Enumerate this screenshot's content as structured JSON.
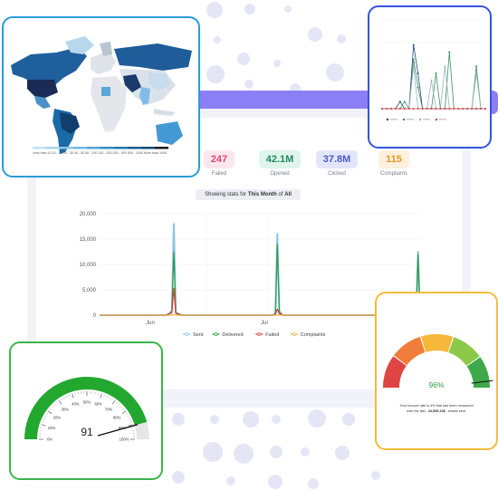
{
  "stats": [
    {
      "value": "247",
      "label": "Failed",
      "fg": "#e0457b",
      "bg": "#fde7ef"
    },
    {
      "value": "42.1M",
      "label": "Opened",
      "fg": "#1e8a5e",
      "bg": "#dff5ec"
    },
    {
      "value": "37.8M",
      "label": "Clicked",
      "fg": "#4b5cc4",
      "bg": "#e3e6fb"
    },
    {
      "value": "115",
      "label": "Complaints",
      "fg": "#e29a2b",
      "bg": "#fdf0dc"
    }
  ],
  "showing": {
    "prefix": "Showing stats for",
    "period": "This Month",
    "of": "of",
    "scope": "All"
  },
  "chart_data": {
    "type": "line",
    "title": "",
    "y_ticks": [
      "20,000",
      "15,000",
      "10,000",
      "5,000",
      "0"
    ],
    "ylim": [
      0,
      20000
    ],
    "x_ticks": [
      "Jun",
      "Jul"
    ],
    "legend": [
      "Sent",
      "Delivered",
      "Failed",
      "Complaints"
    ],
    "grid": true,
    "series": [
      {
        "name": "Sent",
        "color": "#8cc5e6",
        "values": [
          0,
          0,
          0,
          0,
          0,
          0,
          0,
          0,
          0,
          0,
          0,
          0,
          0,
          0,
          0,
          0,
          0,
          0,
          0,
          0,
          0,
          0,
          0,
          0,
          0,
          0,
          0,
          0,
          0,
          0,
          0,
          0,
          0,
          0,
          0,
          200,
          400,
          900,
          18000,
          600,
          300,
          200,
          0,
          0,
          0,
          0,
          0,
          0,
          0,
          0,
          0,
          0,
          0,
          0,
          0,
          0,
          0,
          0,
          0,
          0,
          0,
          0,
          0,
          0,
          0,
          0,
          0,
          0,
          0,
          0,
          0,
          0,
          0,
          0,
          0,
          0,
          0,
          0,
          0,
          0,
          0,
          0,
          0,
          0,
          0,
          0,
          0,
          0,
          0,
          0,
          500,
          16000,
          800,
          300,
          0,
          0,
          0,
          0,
          0,
          0,
          0,
          0,
          0,
          0,
          0,
          0,
          0,
          0,
          0,
          0,
          0,
          0,
          0,
          0,
          0,
          0,
          0,
          0,
          0,
          0,
          0,
          0,
          0,
          0,
          0,
          0,
          0,
          0,
          0,
          0,
          0,
          0,
          0,
          0,
          0,
          0,
          0,
          0,
          0,
          0,
          0,
          0,
          0,
          0,
          0,
          0,
          0,
          0,
          0,
          0,
          0,
          0,
          0,
          0,
          0,
          0,
          0,
          0,
          0,
          0,
          0,
          0,
          0,
          12500,
          500,
          0
        ]
      },
      {
        "name": "Delivered",
        "color": "#2e9b47",
        "values": [
          0,
          0,
          0,
          0,
          0,
          0,
          0,
          0,
          0,
          0,
          0,
          0,
          0,
          0,
          0,
          0,
          0,
          0,
          0,
          0,
          0,
          0,
          0,
          0,
          0,
          0,
          0,
          0,
          0,
          0,
          0,
          0,
          0,
          0,
          0,
          200,
          400,
          800,
          12500,
          500,
          300,
          200,
          0,
          0,
          0,
          0,
          0,
          0,
          0,
          0,
          0,
          0,
          0,
          0,
          0,
          0,
          0,
          0,
          0,
          0,
          0,
          0,
          0,
          0,
          0,
          0,
          0,
          0,
          0,
          0,
          0,
          0,
          0,
          0,
          0,
          0,
          0,
          0,
          0,
          0,
          0,
          0,
          0,
          0,
          0,
          0,
          0,
          0,
          0,
          0,
          400,
          14000,
          600,
          200,
          0,
          0,
          0,
          0,
          0,
          0,
          0,
          0,
          0,
          0,
          0,
          0,
          0,
          0,
          0,
          0,
          0,
          0,
          0,
          0,
          0,
          0,
          0,
          0,
          0,
          0,
          0,
          0,
          0,
          0,
          0,
          0,
          0,
          0,
          0,
          0,
          0,
          0,
          0,
          0,
          0,
          0,
          0,
          0,
          0,
          0,
          0,
          0,
          0,
          0,
          0,
          0,
          0,
          0,
          0,
          0,
          0,
          0,
          0,
          0,
          0,
          0,
          0,
          0,
          0,
          0,
          0,
          0,
          0,
          12000,
          400,
          0
        ]
      },
      {
        "name": "Failed",
        "color": "#e03a3a",
        "values": [
          0,
          0,
          0,
          0,
          0,
          0,
          0,
          0,
          0,
          0,
          0,
          0,
          0,
          0,
          0,
          0,
          0,
          0,
          0,
          0,
          0,
          0,
          0,
          0,
          0,
          0,
          0,
          0,
          0,
          0,
          0,
          0,
          0,
          0,
          0,
          100,
          300,
          500,
          5300,
          400,
          200,
          100,
          0,
          0,
          0,
          0,
          0,
          0,
          0,
          0,
          0,
          0,
          0,
          0,
          0,
          0,
          0,
          0,
          0,
          0,
          0,
          0,
          0,
          0,
          0,
          0,
          0,
          0,
          0,
          0,
          0,
          0,
          0,
          0,
          0,
          0,
          0,
          0,
          0,
          0,
          0,
          0,
          0,
          0,
          0,
          0,
          0,
          0,
          0,
          0,
          200,
          1200,
          300,
          100,
          0,
          0,
          0,
          0,
          0,
          0,
          0,
          0,
          0,
          0,
          0,
          0,
          0,
          0,
          0,
          0,
          0,
          0,
          0,
          0,
          0,
          0,
          0,
          0,
          0,
          0,
          0,
          0,
          0,
          0,
          0,
          0,
          0,
          0,
          0,
          0,
          0,
          0,
          0,
          0,
          0,
          0,
          0,
          0,
          0,
          0,
          0,
          0,
          0,
          0,
          0,
          0,
          0,
          0,
          0,
          0,
          0,
          0,
          0,
          0,
          0,
          0,
          0,
          0,
          0,
          0,
          0,
          0,
          0,
          200,
          0,
          0
        ]
      },
      {
        "name": "Complaints",
        "color": "#f0b14a",
        "values": [
          0,
          0,
          0,
          0,
          0,
          0,
          0,
          0,
          0,
          0,
          0,
          0,
          0,
          0,
          0,
          0,
          0,
          0,
          0,
          0,
          0,
          0,
          0,
          0,
          0,
          0,
          0,
          0,
          0,
          0,
          0,
          0,
          0,
          0,
          0,
          0,
          0,
          0,
          100,
          0,
          0,
          0,
          0,
          0,
          0,
          0,
          0,
          0,
          0,
          0,
          0,
          0,
          0,
          0,
          0,
          0,
          0,
          0,
          0,
          0,
          0,
          0,
          0,
          0,
          0,
          0,
          0,
          0,
          0,
          0,
          0,
          0,
          0,
          0,
          0,
          0,
          0,
          0,
          0,
          0,
          0,
          0,
          0,
          0,
          0,
          0,
          0,
          0,
          0,
          0,
          0,
          100,
          0,
          0,
          0,
          0,
          0,
          0,
          0,
          0,
          0,
          0,
          0,
          0,
          0,
          0,
          0,
          0,
          0,
          0,
          0,
          0,
          0,
          0,
          0,
          0,
          0,
          0,
          0,
          0,
          0,
          0,
          0,
          0,
          0,
          0,
          0,
          0,
          0,
          0,
          0,
          0,
          0,
          0,
          0,
          0,
          0,
          0,
          0,
          0,
          0,
          0,
          0,
          0,
          0,
          0,
          0,
          0,
          0,
          0,
          0,
          0,
          0,
          0,
          0,
          0,
          0,
          0,
          0,
          0,
          0,
          0,
          0,
          0,
          0,
          0
        ]
      }
    ]
  },
  "map": {
    "legend_text": "Less than 10 10 - 20 20 - 30 30 - 50 50 - 100 100 - 200 200 - 500 500 - 1000 More than 1000",
    "colors": [
      "#bfe3f3",
      "#a5d6ee",
      "#8bc8e7",
      "#6db7df",
      "#4ea4d5",
      "#338fc8",
      "#1f77b4",
      "#185f94",
      "#124a74",
      "#1b1b1b"
    ]
  },
  "mini_chart": {
    "series": [
      {
        "color": "#1c4a78",
        "values": [
          0,
          0,
          0,
          0,
          1,
          0,
          0,
          9,
          5,
          0,
          0,
          0,
          0,
          0,
          0,
          0,
          0,
          0,
          0,
          0,
          0,
          0,
          0,
          0
        ]
      },
      {
        "color": "#3a8f5a",
        "values": [
          0,
          0,
          0,
          0,
          0,
          1,
          0,
          7,
          3,
          0,
          0,
          0,
          5,
          0,
          0,
          8,
          0,
          0,
          0,
          0,
          0,
          6,
          0,
          0
        ]
      },
      {
        "color": "#9ab3c7",
        "values": [
          0,
          0,
          0,
          0,
          0,
          0,
          0,
          6,
          0,
          0,
          0,
          4,
          0,
          0,
          6,
          0,
          0,
          0,
          0,
          0,
          0,
          5,
          0,
          0
        ]
      },
      {
        "color": "#d64a4a",
        "values": [
          0,
          0,
          0,
          0,
          0,
          0,
          0,
          0,
          0,
          0,
          0,
          0,
          0,
          0,
          0,
          0,
          0,
          0,
          0,
          0,
          0,
          0,
          0,
          0
        ]
      }
    ]
  },
  "gauge_green": {
    "value": "91",
    "ticks": [
      "0%",
      "10%",
      "20%",
      "30%",
      "40%",
      "50%",
      "60%",
      "70%",
      "80%",
      "90%",
      "100%"
    ],
    "fraction": 0.91,
    "color": "#22a82f"
  },
  "gauge_bounce": {
    "value": "96%",
    "fraction": 0.96,
    "caption_line1": "Your bounce rate is 4% that has been measured",
    "caption_line2_prefix": "over the last",
    "caption_line2_strong": "44,585,158",
    "caption_line2_suffix": "emails sent.",
    "segments": [
      "#e04545",
      "#f07e3a",
      "#f5b83a",
      "#8cc94a",
      "#3da94a"
    ]
  }
}
